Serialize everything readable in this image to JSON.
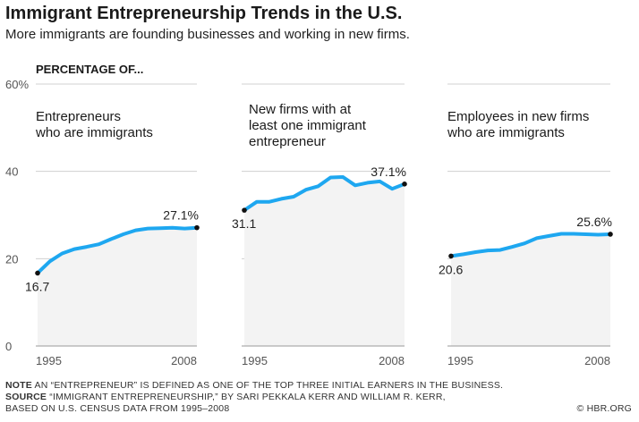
{
  "title": "Immigrant Entrepreneurship Trends in the U.S.",
  "subtitle": "More immigrants are founding businesses and working in new firms.",
  "section_label": "PERCENTAGE OF...",
  "y_tick_labels": [
    "0",
    "20",
    "40",
    "60%"
  ],
  "chart_data": {
    "type": "line",
    "ylim": [
      0,
      60
    ],
    "yticks": [
      0,
      20,
      40,
      60
    ],
    "xlim": [
      1995,
      2008
    ],
    "grid": true,
    "panels": [
      {
        "label_lines": [
          "Entrepreneurs",
          "who are immigrants"
        ],
        "x_tick_labels": [
          "1995",
          "2008"
        ],
        "x": [
          1995,
          1996,
          1997,
          1998,
          1999,
          2000,
          2001,
          2002,
          2003,
          2004,
          2005,
          2006,
          2007,
          2008
        ],
        "values": [
          16.7,
          19.4,
          21.2,
          22.2,
          22.7,
          23.3,
          24.5,
          25.6,
          26.5,
          26.9,
          27.0,
          27.1,
          26.9,
          27.1
        ],
        "start_label": "16.7",
        "end_label": "27.1%"
      },
      {
        "label_lines": [
          "New firms with at",
          "least one immigrant",
          "entrepreneur"
        ],
        "x_tick_labels": [
          "1995",
          "2008"
        ],
        "x": [
          1995,
          1996,
          1997,
          1998,
          1999,
          2000,
          2001,
          2002,
          2003,
          2004,
          2005,
          2006,
          2007,
          2008
        ],
        "values": [
          31.1,
          33.0,
          33.0,
          33.7,
          34.2,
          35.8,
          36.6,
          38.6,
          38.7,
          36.8,
          37.4,
          37.7,
          36.0,
          37.1
        ],
        "start_label": "31.1",
        "end_label": "37.1%"
      },
      {
        "label_lines": [
          "Employees in new firms",
          "who are immigrants"
        ],
        "x_tick_labels": [
          "1995",
          "2008"
        ],
        "x": [
          1995,
          1996,
          1997,
          1998,
          1999,
          2000,
          2001,
          2002,
          2003,
          2004,
          2005,
          2006,
          2007,
          2008
        ],
        "values": [
          20.6,
          21.0,
          21.5,
          21.9,
          22.0,
          22.7,
          23.5,
          24.7,
          25.2,
          25.7,
          25.7,
          25.6,
          25.5,
          25.6
        ],
        "start_label": "20.6",
        "end_label": "25.6%"
      }
    ]
  },
  "footer": {
    "note_label": "NOTE",
    "note_text": "AN “ENTREPRENEUR” IS DEFINED AS ONE OF THE TOP THREE INITIAL EARNERS IN THE BUSINESS.",
    "source_label": "SOURCE",
    "source_line1": "“IMMIGRANT ENTREPRENEURSHIP,” BY SARI PEKKALA KERR AND WILLIAM R. KERR,",
    "source_line2": "BASED ON U.S. CENSUS DATA FROM 1995–2008",
    "credit": "© HBR.ORG"
  },
  "colors": {
    "line": "#1ea7f0",
    "fill": "#f3f3f3",
    "grid": "#d0d0d0",
    "axis": "#999999",
    "dot": "#111111"
  }
}
